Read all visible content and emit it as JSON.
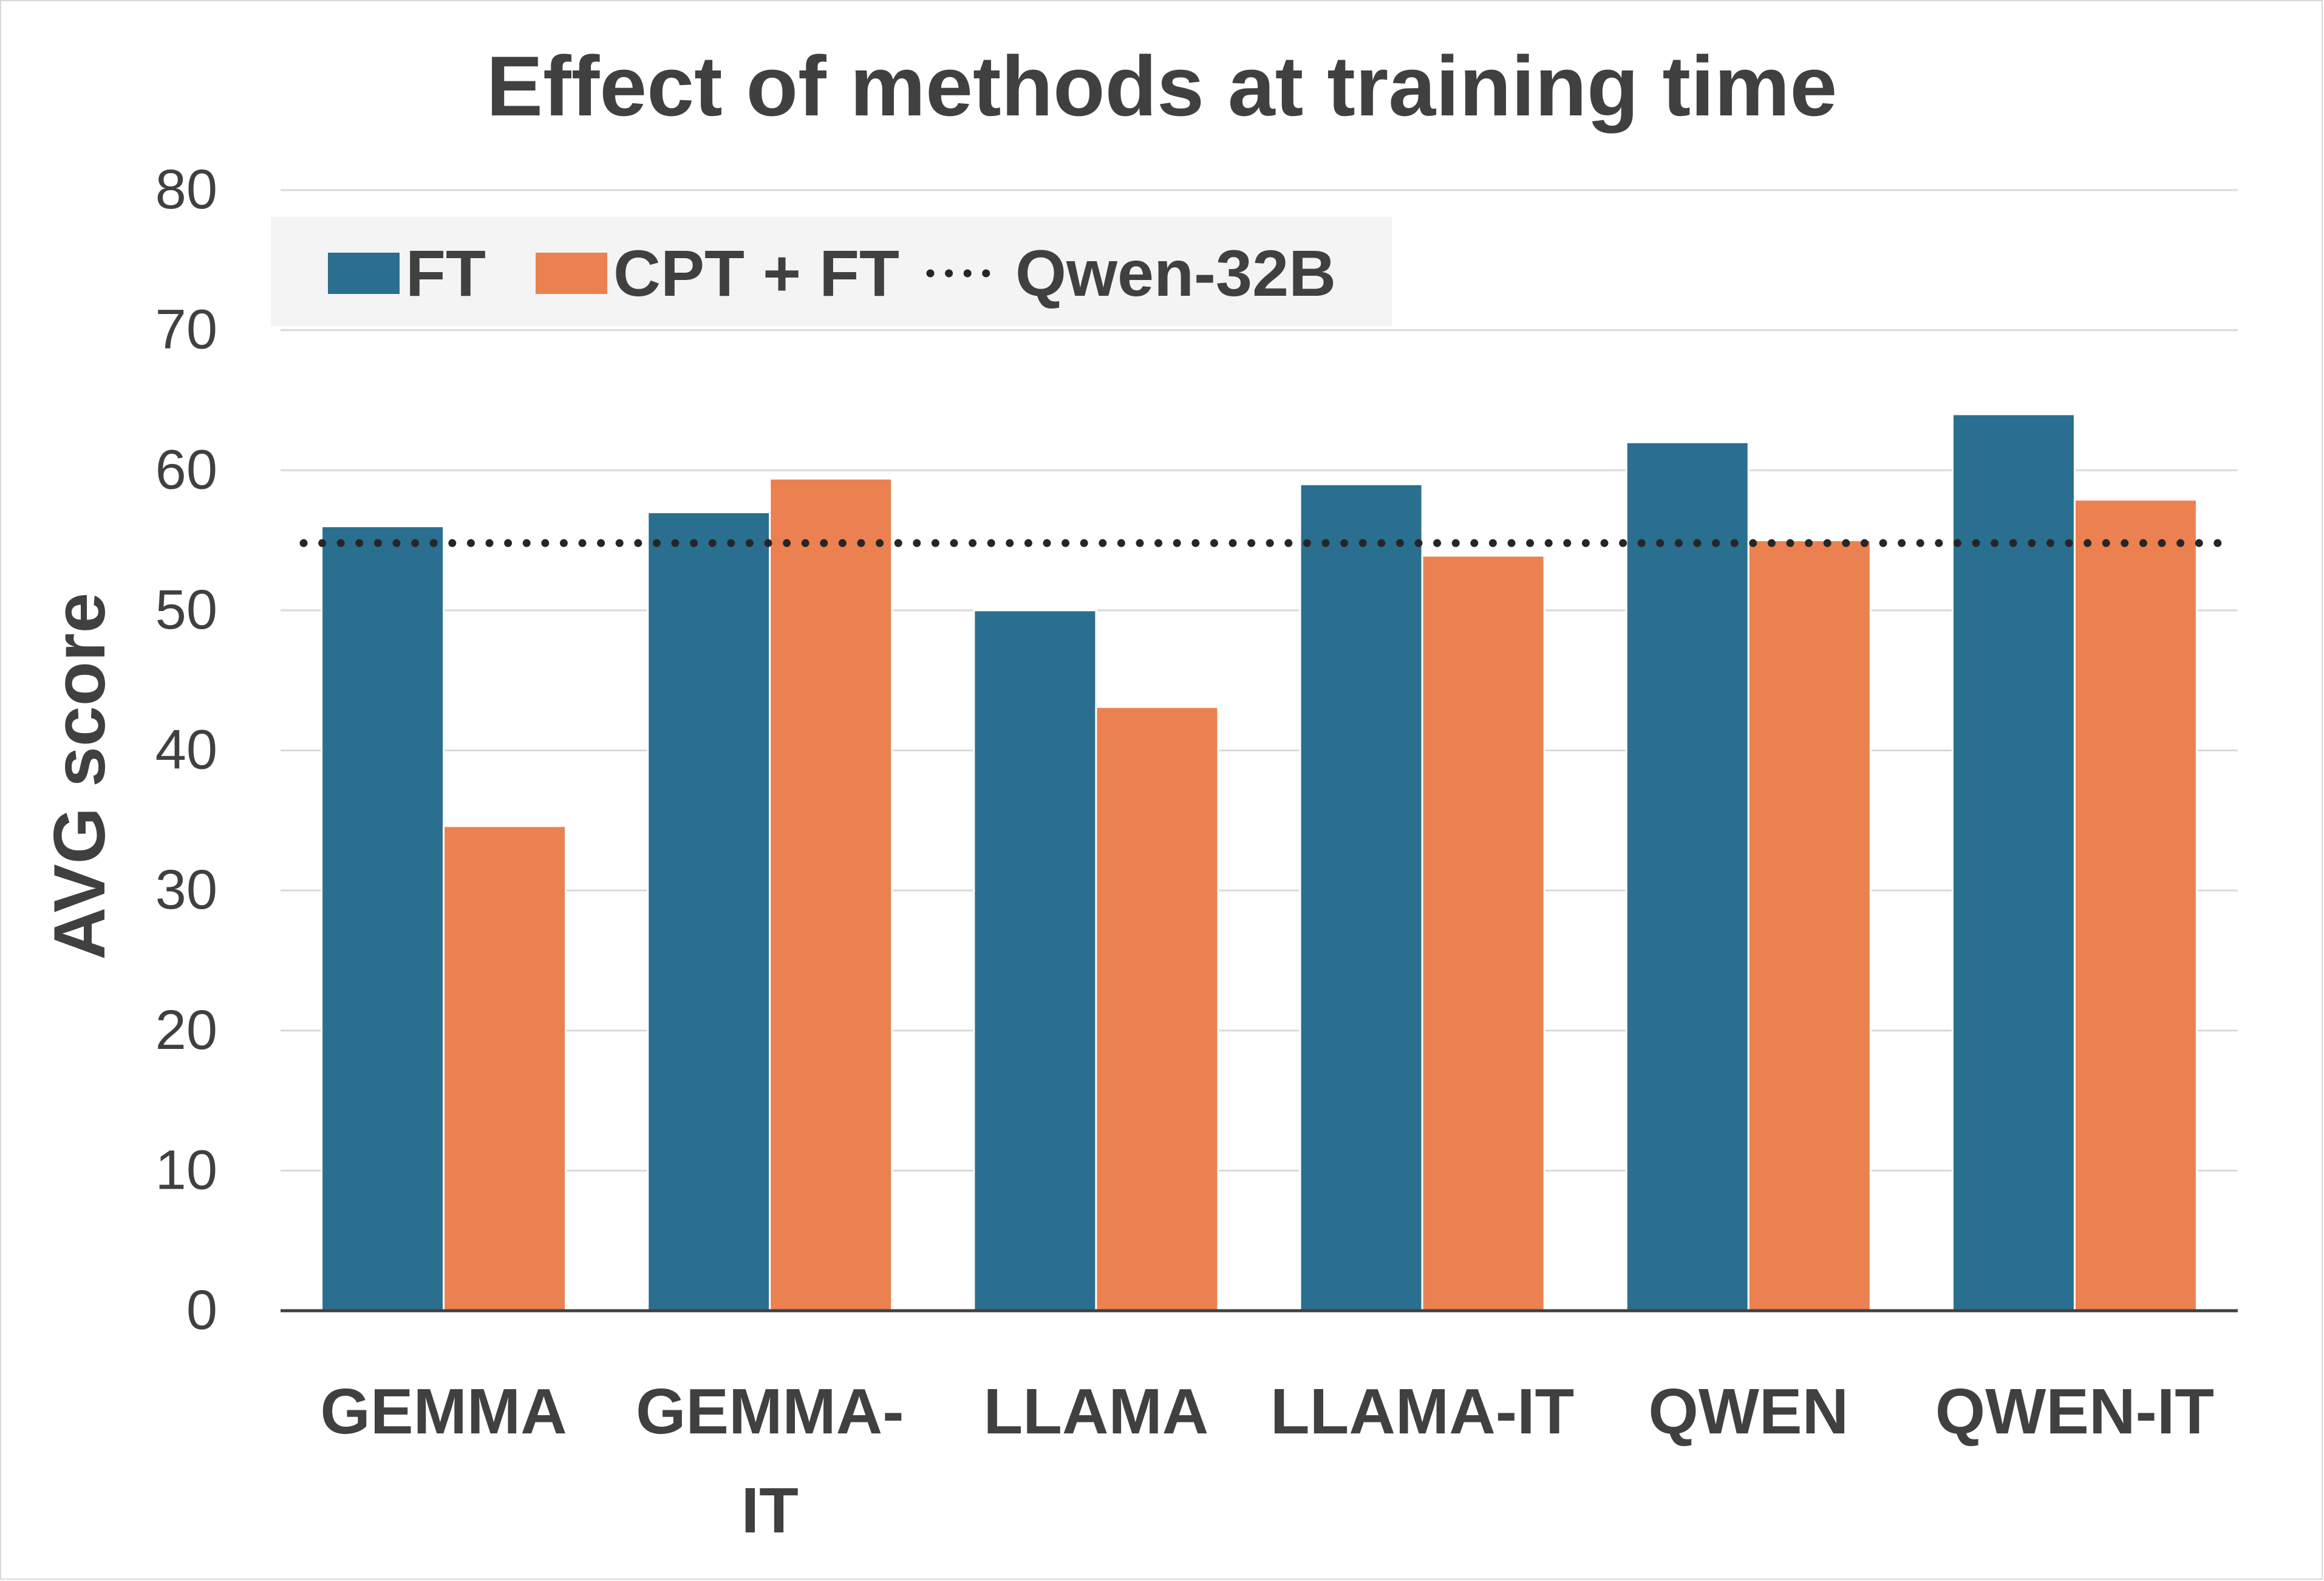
{
  "chart_data": {
    "type": "bar",
    "title": "Effect of methods at training time",
    "xlabel": "",
    "ylabel": "AVG score",
    "ylim": [
      0,
      80
    ],
    "yticks": [
      "0",
      "10",
      "20",
      "30",
      "40",
      "50",
      "60",
      "70",
      "80"
    ],
    "grid": true,
    "categories": [
      {
        "lines": [
          "GEMMA"
        ]
      },
      {
        "lines": [
          "GEMMA-",
          "IT"
        ]
      },
      {
        "lines": [
          "LLAMA"
        ]
      },
      {
        "lines": [
          "LLAMA-IT"
        ]
      },
      {
        "lines": [
          "QWEN"
        ]
      },
      {
        "lines": [
          "QWEN-IT"
        ]
      }
    ],
    "series": [
      {
        "name": "FT",
        "color": "#2a6f8f",
        "values": [
          56,
          57,
          50,
          59,
          62,
          64
        ]
      },
      {
        "name": "CPT + FT",
        "color": "#eb8150",
        "values": [
          34.6,
          59.4,
          43.1,
          53.9,
          55,
          57.9
        ]
      }
    ],
    "reference_line": {
      "name": "Qwen-32B",
      "value": 54.8,
      "style": "dotted",
      "color": "#262626"
    },
    "legend": {
      "placement": "top-left",
      "items": [
        {
          "label": "FT",
          "kind": "swatch",
          "color": "#2a6f8f"
        },
        {
          "label": "CPT + FT",
          "kind": "swatch",
          "color": "#eb8150"
        },
        {
          "label": "Qwen-32B",
          "kind": "dots",
          "color": "#262626"
        }
      ]
    }
  }
}
